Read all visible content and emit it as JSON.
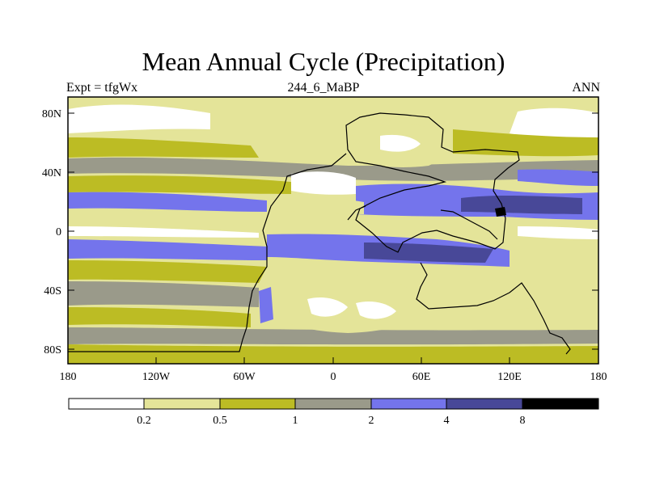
{
  "title": "Mean Annual Cycle (Precipitation)",
  "subtitle": {
    "left": "Expt = tfgWx",
    "center": "244_6_MaBP",
    "right": "ANN"
  },
  "axes": {
    "y_ticks": [
      "80N",
      "40N",
      "0",
      "40S",
      "80S"
    ],
    "x_ticks": [
      "180",
      "120W",
      "60W",
      "0",
      "60E",
      "120E",
      "180"
    ]
  },
  "colorbar": {
    "levels": [
      "0.2",
      "0.5",
      "1",
      "2",
      "4",
      "8"
    ],
    "colors": [
      "#ffffff",
      "#e4e499",
      "#bcbc24",
      "#9a9a8a",
      "#7474ec",
      "#484898",
      "#000000"
    ]
  }
}
